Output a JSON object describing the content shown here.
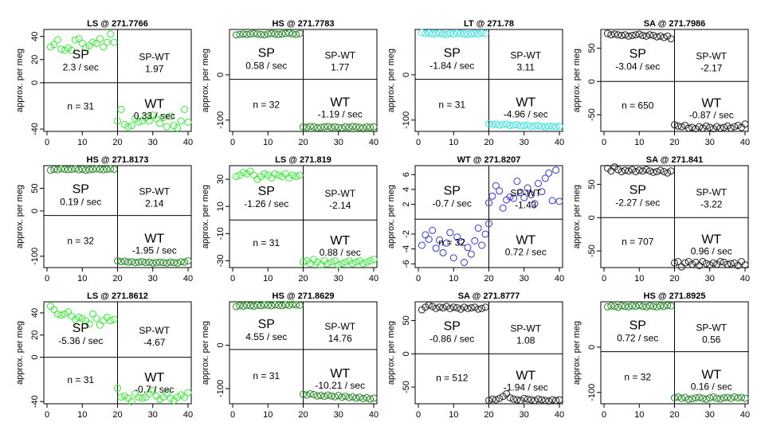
{
  "figure": {
    "ylabel": "approx. per meg"
  },
  "chart_data": [
    {
      "type": "scatter",
      "title": "LS @ 271.7766",
      "color": "#33ee33",
      "xlim": [
        0,
        40
      ],
      "xticks": [
        0,
        10,
        20,
        30,
        40
      ],
      "ylim": [
        -42,
        46
      ],
      "yticks": [
        40,
        20,
        0,
        -40
      ],
      "divider": 0,
      "sp_label": "SP",
      "sp_rate": "2.3 / sec",
      "spwt_label": "SP-WT",
      "spwt_value": "1.97",
      "wt_label": "WT",
      "wt_rate": "0.33 / sec",
      "n_label": "n = 31",
      "sp_values": [
        31,
        33,
        37,
        29,
        28,
        30,
        28,
        37,
        38,
        34,
        30,
        32,
        35,
        34,
        38,
        31,
        35,
        42,
        35
      ],
      "wt_values": [
        -33,
        -23,
        -36,
        -38,
        -37,
        -31,
        -34,
        -33,
        -30,
        -33,
        -28,
        -31,
        -35,
        -30,
        -38,
        -29,
        -37,
        -39,
        -33,
        -23,
        -34
      ]
    },
    {
      "type": "scatter",
      "title": "HS @ 271.7783",
      "color": "#228822",
      "xlim": [
        0,
        40
      ],
      "xticks": [
        0,
        10,
        20,
        30,
        40
      ],
      "ylim": [
        -125,
        100
      ],
      "yticks": [
        0,
        -100
      ],
      "divider": -10,
      "sp_label": "SP",
      "sp_rate": "0.58 / sec",
      "spwt_label": "SP-WT",
      "spwt_value": "1.77",
      "wt_label": "WT",
      "wt_rate": "-1.19 / sec",
      "n_label": "n = 32",
      "sp_values": [
        88,
        89,
        90,
        89,
        90,
        91,
        90,
        89,
        88,
        90,
        91,
        90,
        89,
        90,
        91,
        92,
        90,
        89,
        91
      ],
      "wt_values": [
        -115,
        -116,
        -114,
        -115,
        -117,
        -116,
        -115,
        -114,
        -116,
        -115,
        -116,
        -117,
        -115,
        -116,
        -114,
        -115,
        -116,
        -117,
        -115,
        -116,
        -115
      ]
    },
    {
      "type": "scatter",
      "title": "LT @ 271.78",
      "color": "#33e6e6",
      "xlim": [
        0,
        40
      ],
      "xticks": [
        0,
        10,
        20,
        30,
        40
      ],
      "ylim": [
        -125,
        100
      ],
      "yticks": [
        0,
        -100
      ],
      "divider": -10,
      "sp_label": "SP",
      "sp_rate": "-1.84 / sec",
      "spwt_label": "SP-WT",
      "spwt_value": "3.11",
      "wt_label": "WT",
      "wt_rate": "-4.96 / sec",
      "n_label": "n = 31",
      "sp_values": [
        93,
        91,
        92,
        90,
        91,
        92,
        90,
        89,
        91,
        90,
        92,
        91,
        90,
        89,
        90,
        91,
        90,
        92,
        91
      ],
      "wt_values": [
        -108,
        -110,
        -109,
        -111,
        -110,
        -109,
        -112,
        -111,
        -110,
        -113,
        -112,
        -111,
        -114,
        -113,
        -112,
        -114,
        -115,
        -113,
        -114,
        -115,
        -114
      ]
    },
    {
      "type": "scatter",
      "title": "SA @ 271.7986",
      "color": "#222222",
      "xlim": [
        0,
        40
      ],
      "xticks": [
        0,
        10,
        20,
        30,
        40
      ],
      "ylim": [
        -75,
        78
      ],
      "yticks": [
        50,
        0,
        -50
      ],
      "divider": 0,
      "sp_label": "SP",
      "sp_rate": "-3.04 / sec",
      "spwt_label": "SP-WT",
      "spwt_value": "-2.17",
      "wt_label": "WT",
      "wt_rate": "-0.87 / sec",
      "n_label": "n = 650",
      "sp_values": [
        72,
        70,
        71,
        70,
        69,
        70,
        68,
        69,
        70,
        71,
        69,
        68,
        70,
        69,
        67,
        68,
        66,
        68,
        64
      ],
      "wt_values": [
        -65,
        -67,
        -68,
        -66,
        -70,
        -69,
        -71,
        -68,
        -70,
        -67,
        -69,
        -71,
        -68,
        -70,
        -69,
        -67,
        -70,
        -68,
        -66,
        -69,
        -64
      ]
    },
    {
      "type": "scatter",
      "title": "HS @ 271.8173",
      "color": "#228822",
      "xlim": [
        0,
        40
      ],
      "xticks": [
        0,
        10,
        20,
        30,
        40
      ],
      "ylim": [
        -125,
        100
      ],
      "yticks": [
        50,
        0,
        -100
      ],
      "divider": -10,
      "sp_label": "SP",
      "sp_rate": "0.19 / sec",
      "spwt_label": "SP-WT",
      "spwt_value": "2.14",
      "wt_label": "WT",
      "wt_rate": "-1.95 / sec",
      "n_label": "n = 32",
      "sp_values": [
        90,
        92,
        91,
        93,
        92,
        91,
        92,
        93,
        91,
        92,
        90,
        91,
        92,
        93,
        92,
        91,
        92,
        93,
        92
      ],
      "wt_values": [
        -110,
        -112,
        -111,
        -113,
        -112,
        -114,
        -113,
        -112,
        -114,
        -113,
        -115,
        -114,
        -113,
        -114,
        -115,
        -113,
        -114,
        -115,
        -112,
        -113,
        -110
      ]
    },
    {
      "type": "scatter",
      "title": "LS @ 271.819",
      "color": "#33ee33",
      "xlim": [
        0,
        40
      ],
      "xticks": [
        0,
        10,
        20,
        30,
        40
      ],
      "ylim": [
        -35,
        40
      ],
      "yticks": [
        30,
        10,
        -10,
        -30
      ],
      "divider": 0,
      "sp_label": "SP",
      "sp_rate": "-1.26 / sec",
      "spwt_label": "SP-WT",
      "spwt_value": "-2.14",
      "wt_label": "WT",
      "wt_rate": "0.88 / sec",
      "n_label": "n = 31",
      "sp_values": [
        32,
        33,
        35,
        34,
        36,
        33,
        30,
        32,
        34,
        33,
        31,
        34,
        33,
        32,
        34,
        31,
        33,
        32,
        33
      ],
      "wt_values": [
        -31,
        -30,
        -32,
        -29,
        -31,
        -33,
        -30,
        -32,
        -31,
        -30,
        -33,
        -32,
        -31,
        -30,
        -32,
        -31,
        -30,
        -32,
        -31,
        -30,
        -29
      ]
    },
    {
      "type": "scatter",
      "title": "WT @ 271.8207",
      "color": "#3333dd",
      "xlim": [
        0,
        40
      ],
      "xticks": [
        0,
        10,
        20,
        30,
        40
      ],
      "ylim": [
        -6.5,
        7.2
      ],
      "yticks": [
        6,
        4,
        2,
        -2,
        -4,
        -6
      ],
      "divider": 0,
      "sp_label": "SP",
      "sp_rate": "-0.7 / sec",
      "spwt_label": "SP-WT",
      "spwt_value": "-1.43",
      "wt_label": "WT",
      "wt_rate": "0.72 / sec",
      "n_label": "n = 32",
      "sp_values": [
        -3.5,
        -2.1,
        -2.7,
        -1.5,
        -3.9,
        -2.8,
        -4.5,
        -3.2,
        -1.8,
        -5.2,
        -2.4,
        -3.0,
        -5.8,
        -3.8,
        -4.7,
        -2.9,
        -1.2,
        -3.5,
        -2.0,
        -0.6
      ],
      "wt_values": [
        2.2,
        3.1,
        4.5,
        3.8,
        1.5,
        2.6,
        3.0,
        2.8,
        5.1,
        3.6,
        2.9,
        4.2,
        3.3,
        2.1,
        4.8,
        3.7,
        5.5,
        6.2,
        2.5,
        6.6,
        2.4
      ]
    },
    {
      "type": "scatter",
      "title": "SA @ 271.841",
      "color": "#222222",
      "xlim": [
        0,
        40
      ],
      "xticks": [
        0,
        10,
        20,
        30,
        40
      ],
      "ylim": [
        -75,
        78
      ],
      "yticks": [
        50,
        0,
        -50
      ],
      "divider": 0,
      "sp_label": "SP",
      "sp_rate": "-2.27 / sec",
      "spwt_label": "SP-WT",
      "spwt_value": "-3.22",
      "wt_label": "WT",
      "wt_rate": "0.96 / sec",
      "n_label": "n = 707",
      "sp_values": [
        74,
        70,
        76,
        72,
        69,
        71,
        70,
        72,
        69,
        71,
        70,
        72,
        70,
        68,
        69,
        71,
        69,
        67,
        70
      ],
      "wt_values": [
        -68,
        -66,
        -74,
        -68,
        -66,
        -70,
        -67,
        -72,
        -66,
        -69,
        -71,
        -68,
        -70,
        -66,
        -67,
        -70,
        -69,
        -68,
        -72,
        -66,
        -71
      ]
    },
    {
      "type": "scatter",
      "title": "LS @ 271.8612",
      "color": "#33ee33",
      "xlim": [
        0,
        40
      ],
      "xticks": [
        0,
        10,
        20,
        30,
        40
      ],
      "ylim": [
        -42,
        50
      ],
      "yticks": [
        40,
        20,
        0,
        -40
      ],
      "divider": 0,
      "sp_label": "SP",
      "sp_rate": "-5.36 / sec",
      "spwt_label": "SP-WT",
      "spwt_value": "-4.67",
      "wt_label": "WT",
      "wt_rate": "-0.7 / sec",
      "n_label": "n = 31",
      "sp_values": [
        46,
        43,
        39,
        38,
        39,
        41,
        37,
        34,
        36,
        35,
        33,
        30,
        39,
        35,
        29,
        33,
        36,
        33,
        34
      ],
      "wt_values": [
        -28,
        -36,
        -35,
        -37,
        -40,
        -33,
        -36,
        -37,
        -36,
        -33,
        -30,
        -35,
        -38,
        -36,
        -33,
        -37,
        -39,
        -36,
        -34,
        -36,
        -32
      ]
    },
    {
      "type": "scatter",
      "title": "HS @ 271.8629",
      "color": "#228822",
      "xlim": [
        0,
        40
      ],
      "xticks": [
        0,
        10,
        20,
        30,
        40
      ],
      "ylim": [
        -135,
        100
      ],
      "yticks": [
        0,
        -100
      ],
      "divider": -10,
      "sp_label": "SP",
      "sp_rate": "4.55 / sec",
      "spwt_label": "SP-WT",
      "spwt_value": "14.76",
      "wt_label": "WT",
      "wt_rate": "-10.21 / sec",
      "n_label": "n = 31",
      "sp_values": [
        89,
        91,
        90,
        92,
        91,
        90,
        92,
        91,
        93,
        92,
        91,
        93,
        92,
        91,
        93,
        92,
        94,
        93,
        92
      ],
      "wt_values": [
        -113,
        -115,
        -112,
        -114,
        -117,
        -116,
        -118,
        -115,
        -117,
        -119,
        -116,
        -120,
        -118,
        -121,
        -119,
        -122,
        -120,
        -123,
        -121,
        -124,
        -122
      ]
    },
    {
      "type": "scatter",
      "title": "SA @ 271.8777",
      "color": "#222222",
      "xlim": [
        0,
        40
      ],
      "xticks": [
        0,
        10,
        20,
        30,
        40
      ],
      "ylim": [
        -75,
        78
      ],
      "yticks": [
        50,
        0,
        -50
      ],
      "divider": 0,
      "sp_label": "SP",
      "sp_rate": "-0.86 / sec",
      "spwt_label": "SP-WT",
      "spwt_value": "1.08",
      "wt_label": "WT",
      "wt_rate": "-1.94 / sec",
      "n_label": "n = 512",
      "sp_values": [
        66,
        70,
        73,
        71,
        68,
        70,
        69,
        71,
        68,
        70,
        69,
        67,
        70,
        68,
        69,
        70,
        67,
        68,
        70
      ],
      "wt_values": [
        -70,
        -68,
        -69,
        -67,
        -64,
        -60,
        -66,
        -68,
        -69,
        -70,
        -67,
        -68,
        -69,
        -70,
        -68,
        -69,
        -70,
        -71,
        -69,
        -70,
        -69
      ]
    },
    {
      "type": "scatter",
      "title": "HS @ 271.8925",
      "color": "#228822",
      "xlim": [
        0,
        40
      ],
      "xticks": [
        0,
        10,
        20,
        30,
        40
      ],
      "ylim": [
        -125,
        100
      ],
      "yticks": [
        0,
        -100
      ],
      "divider": -10,
      "sp_label": "SP",
      "sp_rate": "0.72 / sec",
      "spwt_label": "SP-WT",
      "spwt_value": "0.56",
      "wt_label": "WT",
      "wt_rate": "0.16 / sec",
      "n_label": "n = 32",
      "sp_values": [
        89,
        91,
        90,
        88,
        91,
        90,
        89,
        91,
        90,
        92,
        90,
        89,
        91,
        90,
        89,
        91,
        90,
        92,
        91
      ],
      "wt_values": [
        -112,
        -110,
        -113,
        -111,
        -115,
        -114,
        -112,
        -111,
        -113,
        -115,
        -112,
        -110,
        -113,
        -114,
        -112,
        -111,
        -113,
        -110,
        -112,
        -111,
        -113
      ]
    }
  ]
}
